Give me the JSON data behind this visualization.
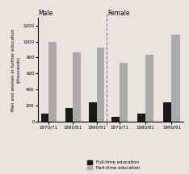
{
  "title_male": "Male",
  "title_female": "Female",
  "years": [
    "1970/71",
    "1980/81",
    "1990/91"
  ],
  "male_fulltime": [
    100,
    170,
    245
  ],
  "male_parttime": [
    1000,
    860,
    920
  ],
  "female_fulltime": [
    60,
    100,
    245
  ],
  "female_parttime": [
    730,
    830,
    1090
  ],
  "ylabel": "Men and women in further education\n(thousands)",
  "ylim": [
    0,
    1300
  ],
  "yticks": [
    0,
    200,
    400,
    600,
    800,
    1000,
    1200
  ],
  "fulltime_color": "#1a1a1a",
  "parttime_color": "#aaaaaa",
  "legend_fulltime": "Full-time education",
  "legend_parttime": "Part-time education",
  "bg_color": "#e8e4de"
}
